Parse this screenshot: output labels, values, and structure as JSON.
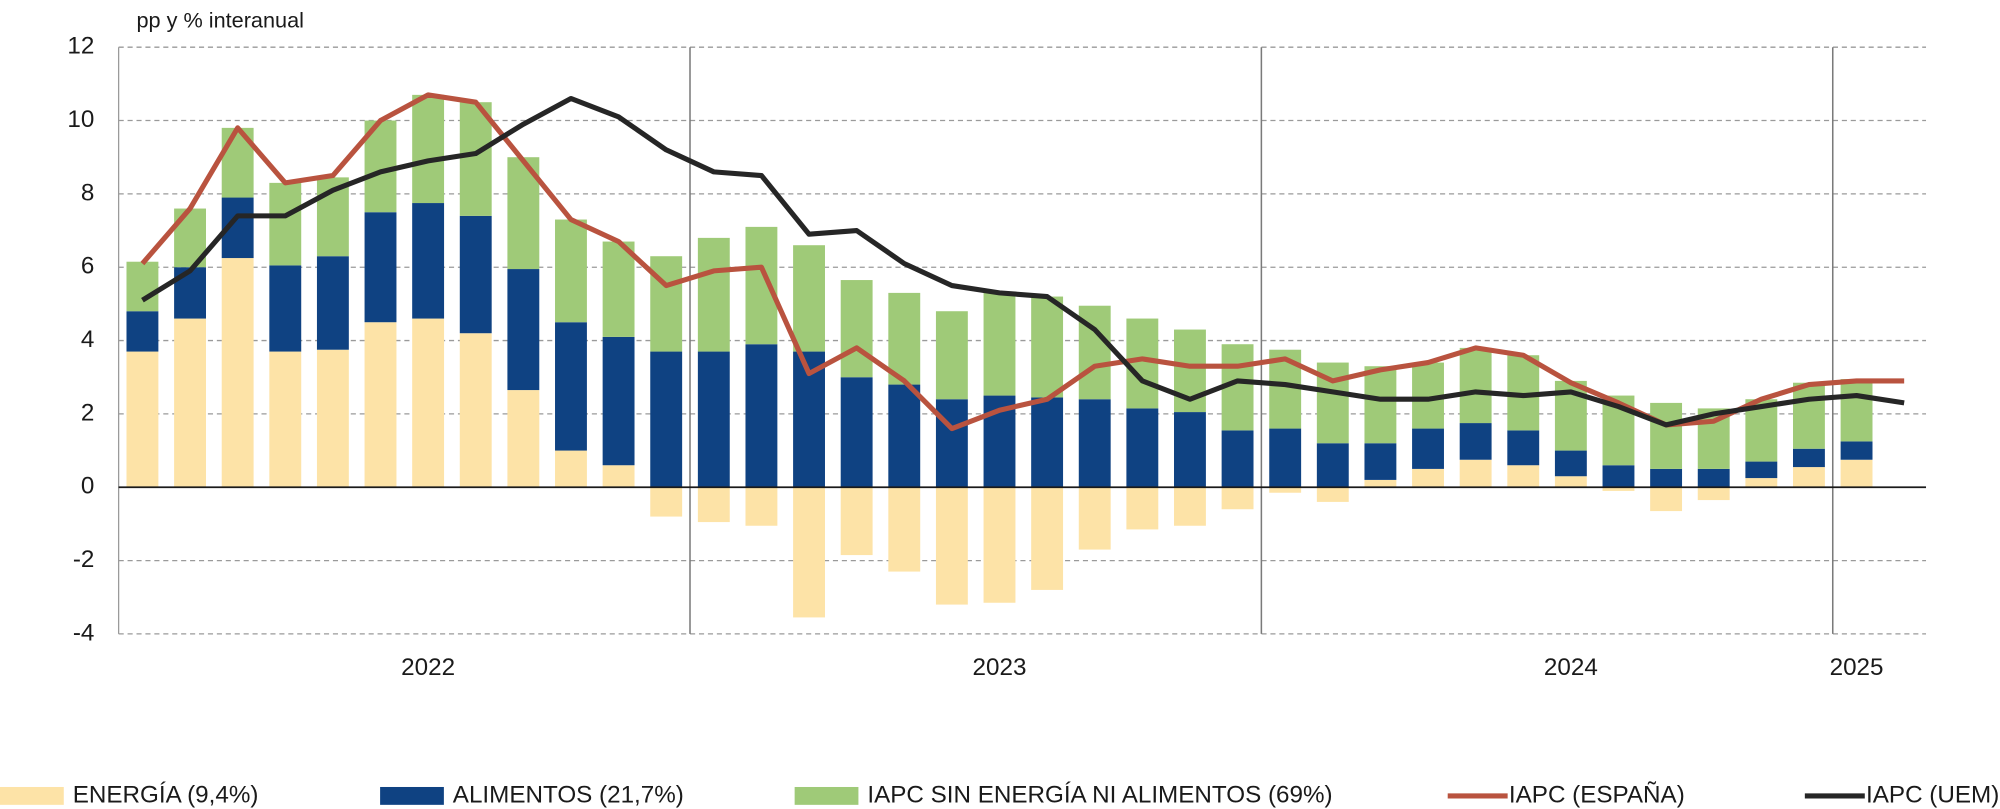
{
  "chart_data": {
    "type": "bar",
    "y_axis_label": "pp y % interanual",
    "categories": [
      null,
      null,
      null,
      null,
      null,
      null,
      "2022",
      null,
      null,
      null,
      null,
      null,
      null,
      null,
      null,
      null,
      null,
      null,
      "2023",
      null,
      null,
      null,
      null,
      null,
      null,
      null,
      null,
      null,
      null,
      null,
      "2024",
      null,
      null,
      null,
      null,
      null,
      "2025",
      null
    ],
    "ylim": [
      -4,
      12
    ],
    "yticks": [
      -4,
      -2,
      0,
      2,
      4,
      6,
      8,
      10,
      12
    ],
    "grid": true,
    "legend": "bottom",
    "series": [
      {
        "name": "ENERGÍA (9,4%)",
        "type": "bar",
        "color": "#fde3a7",
        "values": [
          3.7,
          4.6,
          6.25,
          3.7,
          3.75,
          4.5,
          4.6,
          4.2,
          2.65,
          1.0,
          0.6,
          -0.8,
          -0.95,
          -1.05,
          -3.55,
          -1.85,
          -2.3,
          -3.2,
          -3.15,
          -2.8,
          -1.7,
          -1.15,
          -1.05,
          -0.6,
          -0.15,
          -0.4,
          0.2,
          0.5,
          0.75,
          0.6,
          0.3,
          -0.1,
          -0.65,
          -0.35,
          0.25,
          0.55,
          0.75,
          null
        ]
      },
      {
        "name": "ALIMENTOS (21,7%)",
        "type": "bar",
        "color": "#0f4282",
        "values": [
          1.1,
          1.4,
          1.65,
          2.35,
          2.55,
          3.0,
          3.15,
          3.2,
          3.3,
          3.5,
          3.5,
          3.7,
          3.7,
          3.9,
          3.7,
          3.0,
          2.8,
          2.4,
          2.5,
          2.45,
          2.4,
          2.15,
          2.05,
          1.55,
          1.6,
          1.2,
          1.0,
          1.1,
          1.0,
          0.95,
          0.7,
          0.6,
          0.5,
          0.5,
          0.45,
          0.5,
          0.5,
          null
        ]
      },
      {
        "name": "IAPC SIN ENERGÍA NI ALIMENTOS (69%)",
        "type": "bar",
        "color": "#9fca78",
        "values": [
          1.35,
          1.6,
          1.9,
          2.25,
          2.15,
          2.5,
          2.95,
          3.1,
          3.05,
          2.8,
          2.6,
          2.6,
          3.1,
          3.2,
          2.9,
          2.65,
          2.5,
          2.4,
          2.8,
          2.75,
          2.55,
          2.45,
          2.25,
          2.35,
          2.15,
          2.2,
          2.1,
          1.8,
          2.05,
          2.05,
          1.9,
          1.9,
          1.8,
          1.65,
          1.7,
          1.8,
          1.7,
          null
        ]
      },
      {
        "name": "IAPC (ESPAÑA)",
        "type": "line",
        "color": "#b9533f",
        "values": [
          6.1,
          7.6,
          9.8,
          8.3,
          8.5,
          10.0,
          10.7,
          10.5,
          8.9,
          7.3,
          6.7,
          5.5,
          5.9,
          6.0,
          3.1,
          3.8,
          2.9,
          1.6,
          2.1,
          2.4,
          3.3,
          3.5,
          3.3,
          3.3,
          3.5,
          2.9,
          3.2,
          3.4,
          3.8,
          3.6,
          2.85,
          2.3,
          1.7,
          1.8,
          2.4,
          2.8,
          2.9,
          2.9
        ]
      },
      {
        "name": "IAPC (UEM)",
        "type": "line",
        "color": "#262626",
        "values": [
          5.1,
          5.9,
          7.4,
          7.4,
          8.1,
          8.6,
          8.9,
          9.1,
          9.9,
          10.6,
          10.1,
          9.2,
          8.6,
          8.5,
          6.9,
          7.0,
          6.1,
          5.5,
          5.3,
          5.2,
          4.3,
          2.9,
          2.4,
          2.9,
          2.8,
          2.6,
          2.4,
          2.4,
          2.6,
          2.5,
          2.6,
          2.2,
          1.7,
          2.0,
          2.2,
          2.4,
          2.5,
          2.3
        ]
      }
    ]
  }
}
